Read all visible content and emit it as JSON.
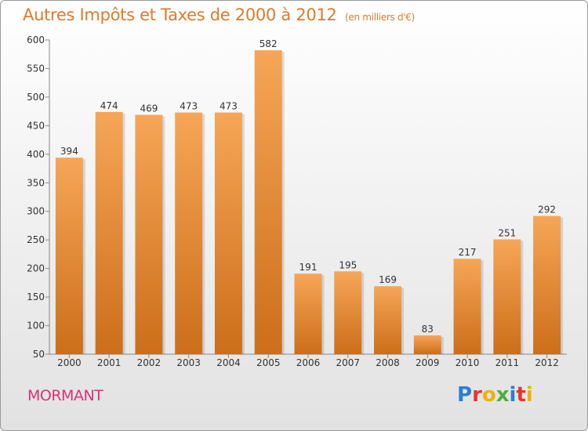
{
  "title": "Autres Impôts et Taxes de 2000 à 2012",
  "unit": "(en milliers d'€)",
  "place": "MORMANT",
  "logo": "Proxiti",
  "colors": {
    "title": "#e07a2a",
    "place": "#d8337a",
    "bar_top": "#f6a657",
    "bar_bottom": "#cc6e1a",
    "logo": [
      "#2a7fd4",
      "#e8352c",
      "#f2b000",
      "#4fae3a",
      "#2a7fd4",
      "#e8352c",
      "#f2b000"
    ]
  },
  "chart_data": {
    "type": "bar",
    "title": "Autres Impôts et Taxes de 2000 à 2012",
    "subtitle": "(en milliers d'€)",
    "categories": [
      "2000",
      "2001",
      "2002",
      "2003",
      "2004",
      "2005",
      "2006",
      "2007",
      "2008",
      "2009",
      "2010",
      "2011",
      "2012"
    ],
    "values": [
      394,
      474,
      469,
      473,
      473,
      582,
      191,
      195,
      169,
      83,
      217,
      251,
      292
    ],
    "ylim": [
      50,
      600
    ],
    "yticks": [
      50,
      100,
      150,
      200,
      250,
      300,
      350,
      400,
      450,
      500,
      550,
      600
    ],
    "grid": false,
    "data_labels": true
  }
}
